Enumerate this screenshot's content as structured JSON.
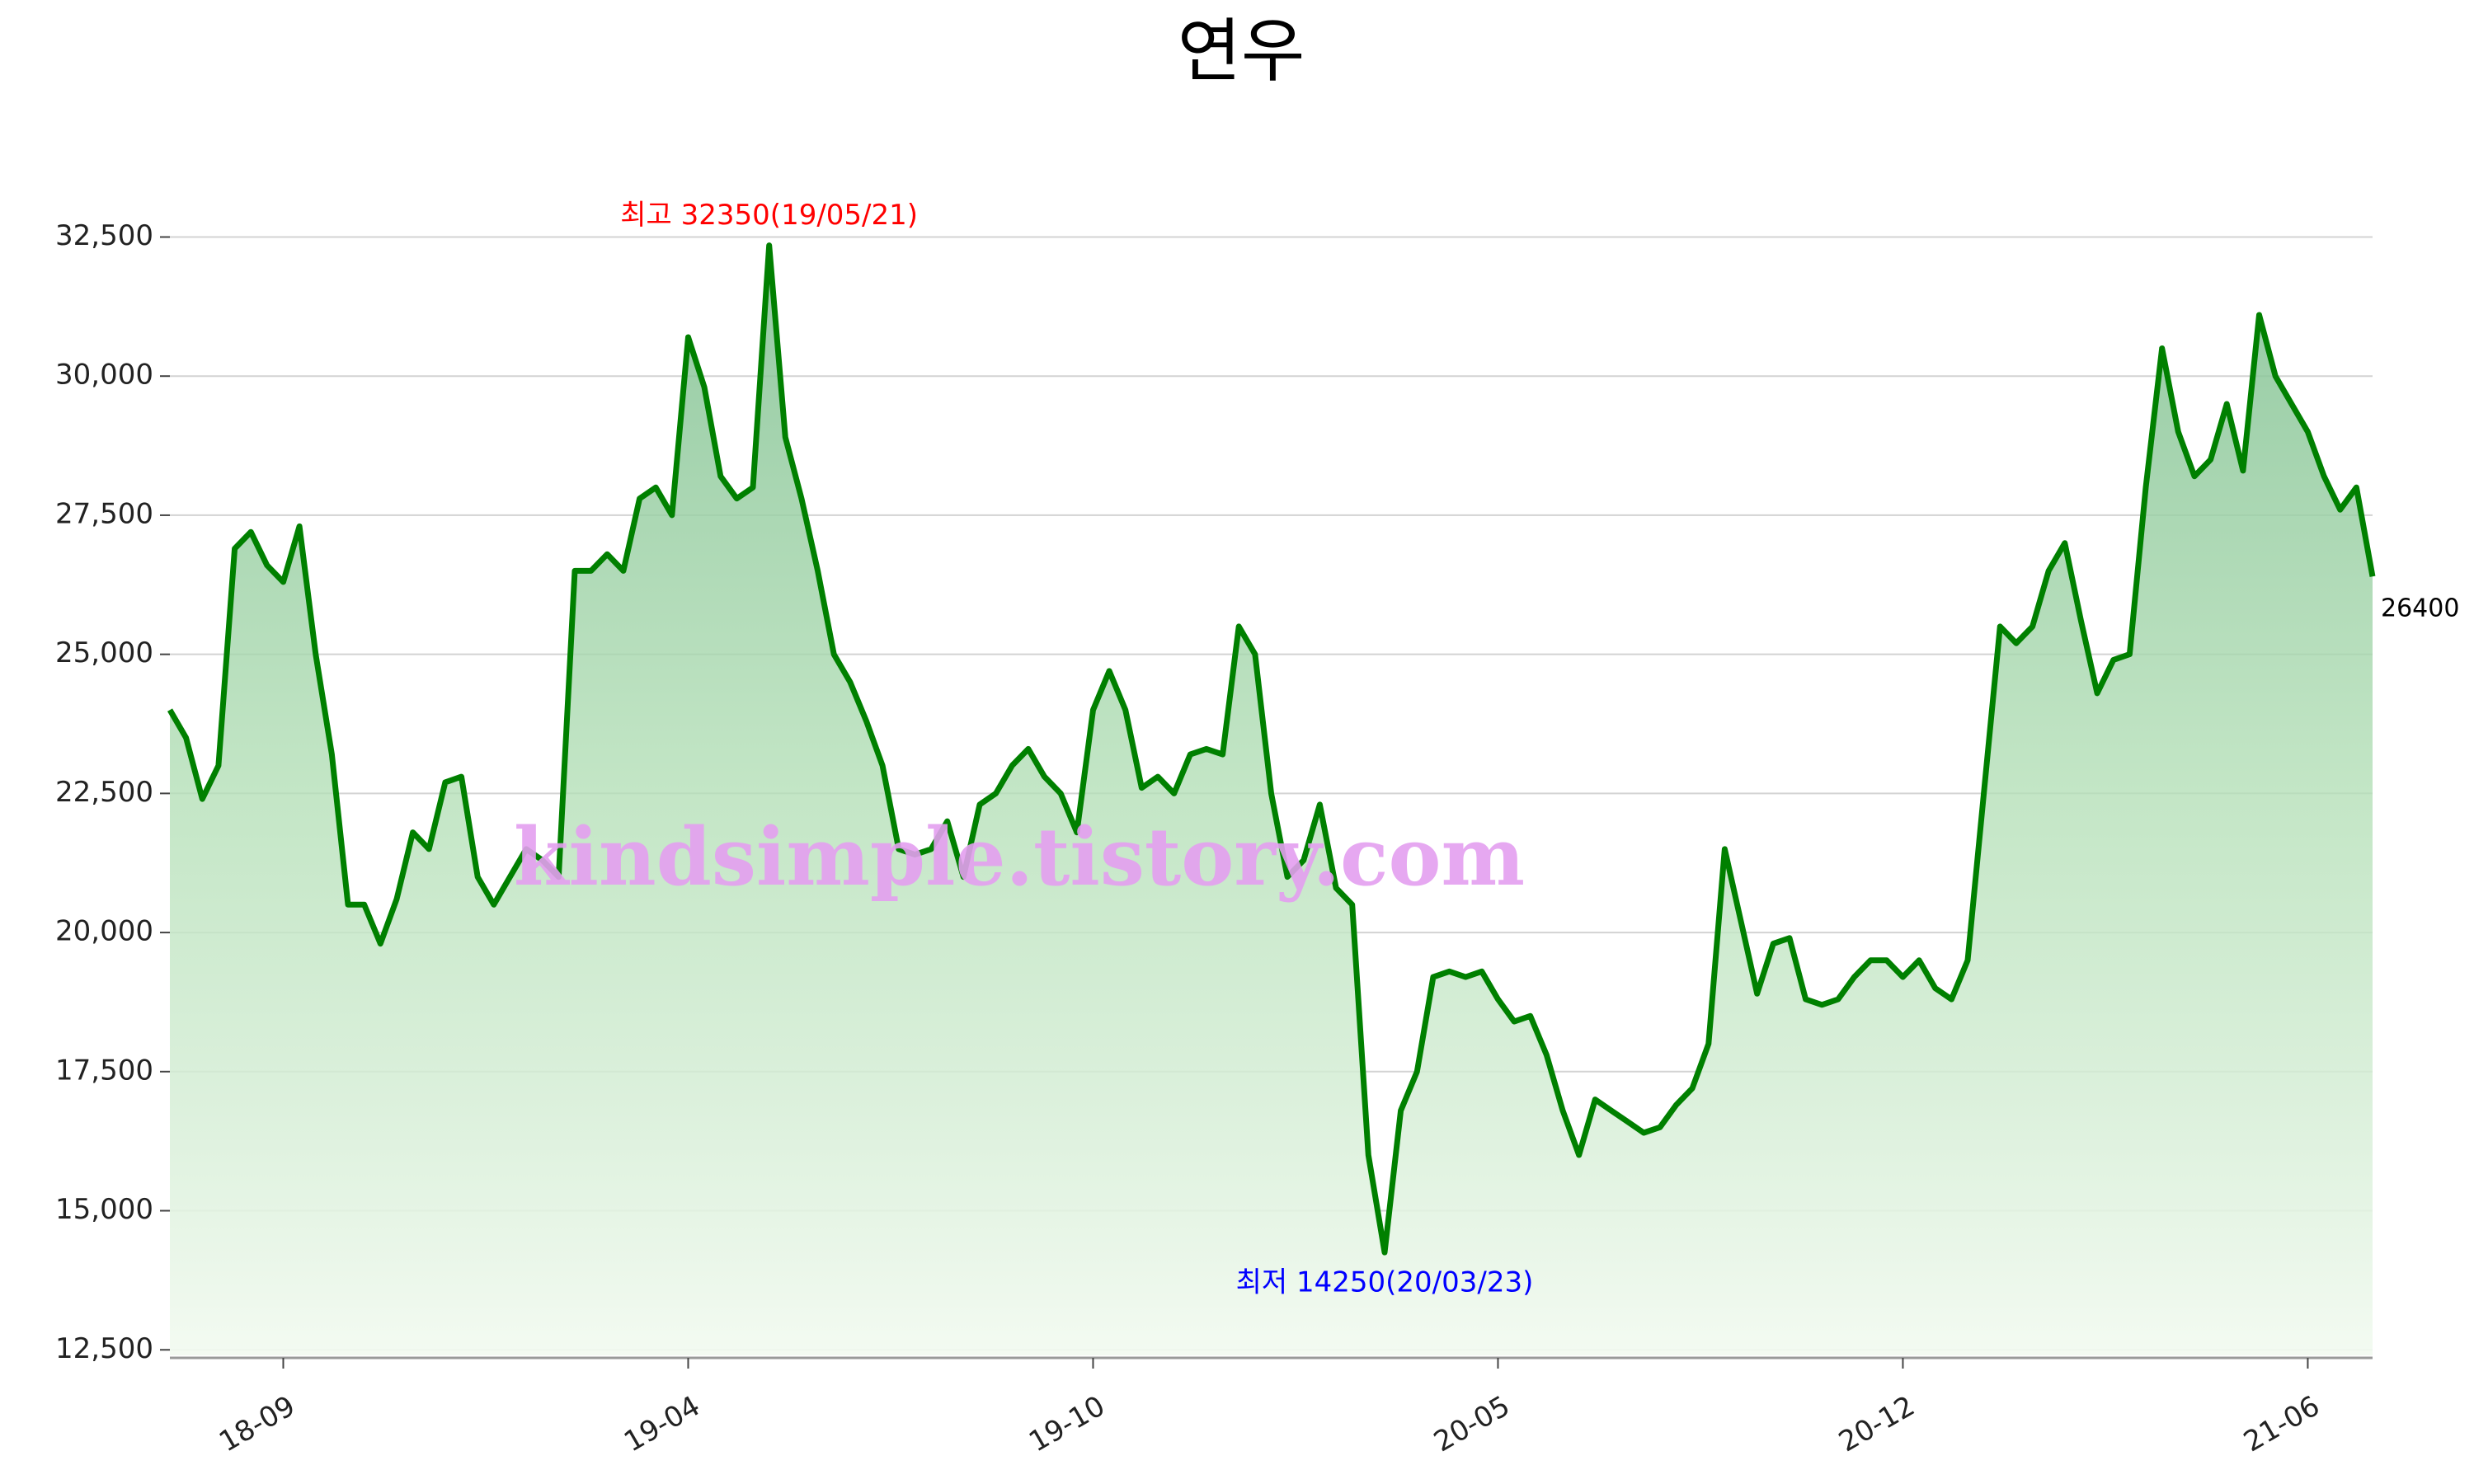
{
  "chart_data": {
    "type": "line",
    "title": "연우",
    "watermark": "kindsimple.tistory.com",
    "categories": [
      null,
      null,
      null,
      null,
      null,
      null,
      null,
      "18-09",
      null,
      null,
      null,
      null,
      null,
      null,
      null,
      null,
      null,
      null,
      null,
      null,
      null,
      null,
      null,
      null,
      null,
      null,
      null,
      null,
      null,
      null,
      null,
      null,
      "19-04",
      null,
      null,
      null,
      null,
      null,
      null,
      null,
      null,
      null,
      null,
      null,
      null,
      null,
      null,
      null,
      null,
      null,
      null,
      null,
      null,
      null,
      null,
      null,
      null,
      "19-10",
      null,
      null,
      null,
      null,
      null,
      null,
      null,
      null,
      null,
      null,
      null,
      null,
      null,
      null,
      null,
      null,
      null,
      null,
      null,
      null,
      null,
      null,
      null,
      null,
      "20-05",
      null,
      null,
      null,
      null,
      null,
      null,
      null,
      null,
      null,
      null,
      null,
      null,
      null,
      null,
      null,
      null,
      null,
      null,
      null,
      null,
      null,
      null,
      null,
      null,
      "20-12",
      null,
      null,
      null,
      null,
      null,
      null,
      null,
      null,
      null,
      null,
      null,
      null,
      null,
      null,
      null,
      null,
      null,
      null,
      null,
      null,
      null,
      null,
      null,
      null,
      "21-06",
      null,
      null,
      null,
      null
    ],
    "series": [
      {
        "color": "#008000",
        "values": [
          24000,
          23500,
          22400,
          23000,
          26900,
          27200,
          26600,
          26300,
          27300,
          25000,
          23200,
          20500,
          20500,
          19800,
          20600,
          21800,
          21500,
          22700,
          22800,
          21000,
          20500,
          21000,
          21500,
          21300,
          21000,
          26500,
          26500,
          26800,
          26500,
          27800,
          28000,
          27500,
          30700,
          29800,
          28200,
          27800,
          28000,
          32350,
          28900,
          27800,
          26500,
          25000,
          24500,
          23800,
          23000,
          21500,
          21400,
          21500,
          22000,
          21000,
          22300,
          22500,
          23000,
          23300,
          22800,
          22500,
          21800,
          24000,
          24700,
          24000,
          22600,
          22800,
          22500,
          23200,
          23300,
          23200,
          25500,
          25000,
          22500,
          21000,
          21300,
          22300,
          20800,
          20500,
          16000,
          14250,
          16800,
          17500,
          19200,
          19300,
          19200,
          19300,
          18800,
          18400,
          18500,
          17800,
          16800,
          16000,
          17000,
          16800,
          16600,
          16400,
          16500,
          16900,
          17200,
          18000,
          21500,
          20200,
          18900,
          19800,
          19900,
          18800,
          18700,
          18800,
          19200,
          19500,
          19500,
          19200,
          19500,
          19000,
          18800,
          19500,
          22500,
          25500,
          25200,
          25500,
          26500,
          27000,
          25600,
          24300,
          24900,
          25000,
          28000,
          30500,
          29000,
          28200,
          28500,
          29500,
          28300,
          31100,
          30000,
          29500,
          29000,
          28200,
          27600,
          28000,
          26400
        ]
      }
    ],
    "annotations": [
      {
        "text": "최고 32350(19/05/21)",
        "color": "#ff0000"
      },
      {
        "text": "최저 14250(20/03/23)",
        "color": "#0000ff"
      },
      {
        "text": "26400",
        "color": "#000000"
      }
    ],
    "ylim": [
      12400,
      33500
    ],
    "yticks": [
      {
        "value": 12500,
        "label": "12,500"
      },
      {
        "value": 15000,
        "label": "15,000"
      },
      {
        "value": 17500,
        "label": "17,500"
      },
      {
        "value": 20000,
        "label": "20,000"
      },
      {
        "value": 22500,
        "label": "22,500"
      },
      {
        "value": 25000,
        "label": "25,000"
      },
      {
        "value": 27500,
        "label": "27,500"
      },
      {
        "value": 30000,
        "label": "30,000"
      },
      {
        "value": 32500,
        "label": "32,500"
      }
    ],
    "grid": true
  }
}
